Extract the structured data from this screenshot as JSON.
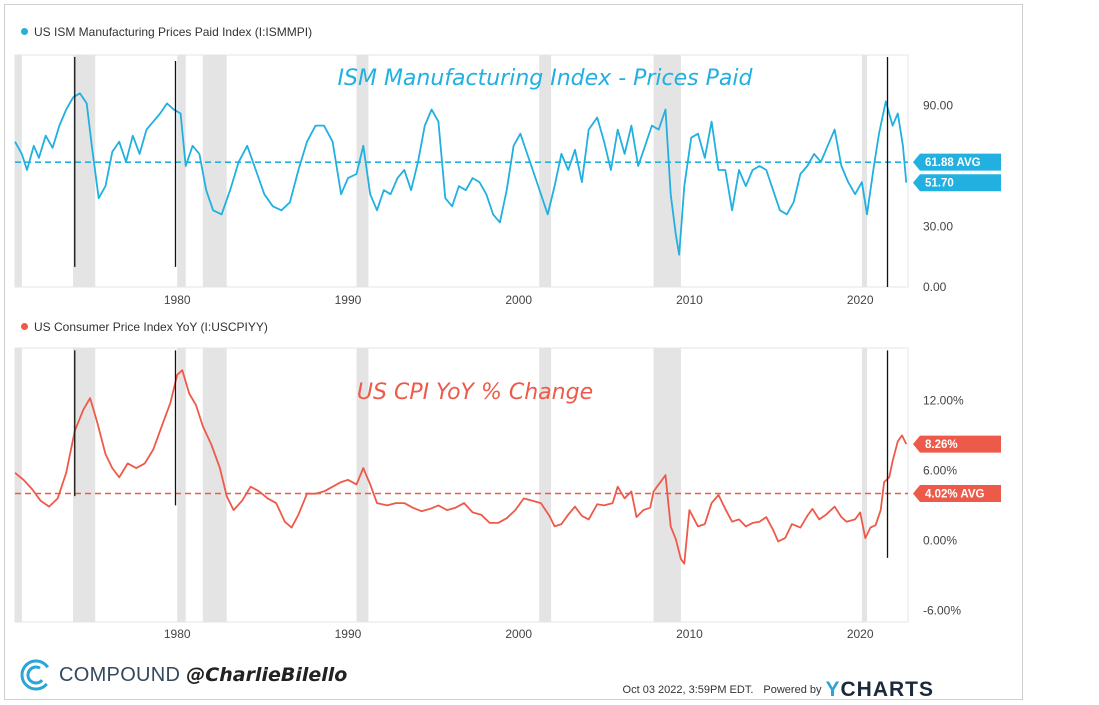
{
  "colors": {
    "ism": "#21b0e0",
    "cpi": "#ee5a4a",
    "recession": "#e4e4e4",
    "axis_text": "#444444"
  },
  "legend": {
    "ism": "US ISM Manufacturing Prices Paid Index (I:ISMMPI)",
    "cpi": "US Consumer Price Index YoY (I:USCPIYY)"
  },
  "footer": {
    "brand": "COMPOUND",
    "handle": "@CharlieBilello",
    "timestamp": "Oct 03 2022, 3:59PM EDT.",
    "powered_by": "Powered by",
    "ycharts_y": "Y",
    "ycharts_rest": "CHARTS"
  },
  "chart_data": [
    {
      "type": "line",
      "title": "ISM Manufacturing Index - Prices Paid",
      "series_name": "US ISM Manufacturing Prices Paid Index (I:ISMMPI)",
      "xlim": [
        1970.5,
        2022.8
      ],
      "ylim": [
        0,
        115
      ],
      "x_ticks": [
        1980,
        1990,
        2000,
        2010,
        2020
      ],
      "y_ticks": [
        0,
        30,
        90
      ],
      "y_tick_labels": [
        "0.00",
        "30.00",
        "90.00"
      ],
      "average": 61.88,
      "average_label": "61.88 AVG",
      "last_value": 51.7,
      "last_label": "51.70",
      "recessions": [
        [
          1970.0,
          1970.9
        ],
        [
          1973.9,
          1975.2
        ],
        [
          1980.0,
          1980.5
        ],
        [
          1981.5,
          1982.9
        ],
        [
          1990.5,
          1991.2
        ],
        [
          2001.2,
          2001.9
        ],
        [
          2007.9,
          2009.5
        ],
        [
          2020.1,
          2020.4
        ]
      ],
      "vlines": [
        [
          1974.0,
          10,
          114
        ],
        [
          1979.9,
          10,
          112
        ],
        [
          2021.6,
          0,
          114
        ]
      ],
      "points": [
        [
          1970.5,
          72
        ],
        [
          1970.9,
          66
        ],
        [
          1971.2,
          58
        ],
        [
          1971.6,
          70
        ],
        [
          1971.9,
          64
        ],
        [
          1972.3,
          75
        ],
        [
          1972.7,
          69
        ],
        [
          1973.1,
          80
        ],
        [
          1973.5,
          88
        ],
        [
          1973.9,
          94
        ],
        [
          1974.3,
          96
        ],
        [
          1974.7,
          91
        ],
        [
          1975.0,
          70
        ],
        [
          1975.4,
          44
        ],
        [
          1975.8,
          50
        ],
        [
          1976.2,
          67
        ],
        [
          1976.6,
          72
        ],
        [
          1977.0,
          62
        ],
        [
          1977.4,
          75
        ],
        [
          1977.8,
          66
        ],
        [
          1978.2,
          78
        ],
        [
          1978.6,
          82
        ],
        [
          1979.0,
          86
        ],
        [
          1979.4,
          91
        ],
        [
          1979.8,
          88
        ],
        [
          1980.2,
          86
        ],
        [
          1980.5,
          60
        ],
        [
          1980.9,
          70
        ],
        [
          1981.3,
          66
        ],
        [
          1981.7,
          48
        ],
        [
          1982.1,
          38
        ],
        [
          1982.6,
          36
        ],
        [
          1983.1,
          48
        ],
        [
          1983.6,
          62
        ],
        [
          1984.1,
          70
        ],
        [
          1984.6,
          58
        ],
        [
          1985.1,
          46
        ],
        [
          1985.6,
          40
        ],
        [
          1986.1,
          38
        ],
        [
          1986.6,
          42
        ],
        [
          1987.1,
          58
        ],
        [
          1987.6,
          72
        ],
        [
          1988.1,
          80
        ],
        [
          1988.6,
          80
        ],
        [
          1989.1,
          72
        ],
        [
          1989.6,
          46
        ],
        [
          1990.0,
          54
        ],
        [
          1990.5,
          56
        ],
        [
          1990.9,
          70
        ],
        [
          1991.3,
          46
        ],
        [
          1991.7,
          38
        ],
        [
          1992.1,
          48
        ],
        [
          1992.5,
          46
        ],
        [
          1992.9,
          54
        ],
        [
          1993.3,
          58
        ],
        [
          1993.7,
          48
        ],
        [
          1994.1,
          62
        ],
        [
          1994.5,
          80
        ],
        [
          1994.9,
          88
        ],
        [
          1995.3,
          82
        ],
        [
          1995.7,
          44
        ],
        [
          1996.1,
          40
        ],
        [
          1996.5,
          50
        ],
        [
          1996.9,
          48
        ],
        [
          1997.3,
          54
        ],
        [
          1997.7,
          52
        ],
        [
          1998.1,
          46
        ],
        [
          1998.5,
          36
        ],
        [
          1998.9,
          32
        ],
        [
          1999.3,
          48
        ],
        [
          1999.7,
          70
        ],
        [
          2000.1,
          76
        ],
        [
          2000.5,
          66
        ],
        [
          2000.9,
          56
        ],
        [
          2001.3,
          46
        ],
        [
          2001.7,
          36
        ],
        [
          2002.1,
          50
        ],
        [
          2002.5,
          66
        ],
        [
          2002.9,
          58
        ],
        [
          2003.3,
          68
        ],
        [
          2003.7,
          52
        ],
        [
          2004.1,
          78
        ],
        [
          2004.6,
          84
        ],
        [
          2005.0,
          72
        ],
        [
          2005.4,
          58
        ],
        [
          2005.8,
          78
        ],
        [
          2006.2,
          66
        ],
        [
          2006.6,
          80
        ],
        [
          2007.0,
          60
        ],
        [
          2007.4,
          70
        ],
        [
          2007.8,
          80
        ],
        [
          2008.2,
          78
        ],
        [
          2008.6,
          88
        ],
        [
          2008.9,
          46
        ],
        [
          2009.2,
          26
        ],
        [
          2009.4,
          16
        ],
        [
          2009.7,
          50
        ],
        [
          2010.1,
          74
        ],
        [
          2010.5,
          76
        ],
        [
          2010.9,
          64
        ],
        [
          2011.3,
          82
        ],
        [
          2011.7,
          58
        ],
        [
          2012.1,
          58
        ],
        [
          2012.5,
          38
        ],
        [
          2012.9,
          58
        ],
        [
          2013.3,
          50
        ],
        [
          2013.7,
          58
        ],
        [
          2014.1,
          60
        ],
        [
          2014.5,
          58
        ],
        [
          2014.9,
          48
        ],
        [
          2015.3,
          38
        ],
        [
          2015.7,
          36
        ],
        [
          2016.1,
          42
        ],
        [
          2016.5,
          56
        ],
        [
          2016.9,
          60
        ],
        [
          2017.3,
          66
        ],
        [
          2017.7,
          62
        ],
        [
          2018.1,
          70
        ],
        [
          2018.5,
          78
        ],
        [
          2018.9,
          60
        ],
        [
          2019.3,
          52
        ],
        [
          2019.7,
          46
        ],
        [
          2020.1,
          52
        ],
        [
          2020.4,
          36
        ],
        [
          2020.8,
          60
        ],
        [
          2021.1,
          76
        ],
        [
          2021.5,
          92
        ],
        [
          2021.9,
          80
        ],
        [
          2022.2,
          86
        ],
        [
          2022.5,
          70
        ],
        [
          2022.7,
          51.7
        ]
      ]
    },
    {
      "type": "line",
      "title": "US CPI YoY % Change",
      "series_name": "US Consumer Price Index YoY (I:USCPIYY)",
      "xlim": [
        1970.5,
        2022.8
      ],
      "ylim": [
        -7,
        16.5
      ],
      "x_ticks": [
        1980,
        1990,
        2000,
        2010,
        2020
      ],
      "y_ticks": [
        -6,
        0,
        6,
        12
      ],
      "y_tick_labels": [
        "-6.00%",
        "0.00%",
        "6.00%",
        "12.00%"
      ],
      "average": 4.02,
      "average_label": "4.02% AVG",
      "last_value": 8.26,
      "last_label": "8.26%",
      "recessions": [
        [
          1970.0,
          1970.9
        ],
        [
          1973.9,
          1975.2
        ],
        [
          1980.0,
          1980.5
        ],
        [
          1981.5,
          1982.9
        ],
        [
          1990.5,
          1991.2
        ],
        [
          2001.2,
          2001.9
        ],
        [
          2007.9,
          2009.5
        ],
        [
          2020.1,
          2020.4
        ]
      ],
      "vlines": [
        [
          1974.0,
          3.8,
          16.3
        ],
        [
          1979.9,
          3,
          16.3
        ],
        [
          2021.6,
          -1.5,
          16.3
        ]
      ],
      "points": [
        [
          1970.5,
          5.8
        ],
        [
          1971.0,
          5.2
        ],
        [
          1971.5,
          4.4
        ],
        [
          1972.0,
          3.4
        ],
        [
          1972.5,
          2.9
        ],
        [
          1973.0,
          3.6
        ],
        [
          1973.5,
          5.8
        ],
        [
          1974.0,
          9.4
        ],
        [
          1974.5,
          11.2
        ],
        [
          1974.9,
          12.2
        ],
        [
          1975.3,
          10.2
        ],
        [
          1975.8,
          7.4
        ],
        [
          1976.2,
          6.2
        ],
        [
          1976.6,
          5.4
        ],
        [
          1977.1,
          6.6
        ],
        [
          1977.6,
          6.2
        ],
        [
          1978.1,
          6.6
        ],
        [
          1978.6,
          7.8
        ],
        [
          1979.1,
          9.8
        ],
        [
          1979.6,
          11.8
        ],
        [
          1980.0,
          14.2
        ],
        [
          1980.3,
          14.6
        ],
        [
          1980.7,
          12.6
        ],
        [
          1981.1,
          11.6
        ],
        [
          1981.5,
          9.8
        ],
        [
          1982.0,
          8.2
        ],
        [
          1982.5,
          6.2
        ],
        [
          1982.9,
          3.8
        ],
        [
          1983.3,
          2.6
        ],
        [
          1983.8,
          3.4
        ],
        [
          1984.3,
          4.6
        ],
        [
          1984.8,
          4.2
        ],
        [
          1985.3,
          3.6
        ],
        [
          1985.8,
          3.2
        ],
        [
          1986.3,
          1.6
        ],
        [
          1986.7,
          1.1
        ],
        [
          1987.1,
          2.2
        ],
        [
          1987.6,
          4.0
        ],
        [
          1988.1,
          4.0
        ],
        [
          1988.6,
          4.2
        ],
        [
          1989.1,
          4.6
        ],
        [
          1989.6,
          5.0
        ],
        [
          1990.0,
          5.2
        ],
        [
          1990.5,
          4.8
        ],
        [
          1990.9,
          6.2
        ],
        [
          1991.3,
          4.8
        ],
        [
          1991.7,
          3.2
        ],
        [
          1992.3,
          3.0
        ],
        [
          1992.8,
          3.2
        ],
        [
          1993.3,
          3.2
        ],
        [
          1993.8,
          2.8
        ],
        [
          1994.3,
          2.5
        ],
        [
          1994.8,
          2.7
        ],
        [
          1995.3,
          3.0
        ],
        [
          1995.8,
          2.6
        ],
        [
          1996.3,
          2.8
        ],
        [
          1996.8,
          3.2
        ],
        [
          1997.3,
          2.4
        ],
        [
          1997.8,
          2.2
        ],
        [
          1998.3,
          1.5
        ],
        [
          1998.8,
          1.5
        ],
        [
          1999.3,
          1.9
        ],
        [
          1999.8,
          2.6
        ],
        [
          2000.3,
          3.6
        ],
        [
          2000.8,
          3.4
        ],
        [
          2001.3,
          3.2
        ],
        [
          2001.8,
          2.1
        ],
        [
          2002.1,
          1.2
        ],
        [
          2002.5,
          1.4
        ],
        [
          2002.9,
          2.2
        ],
        [
          2003.3,
          2.9
        ],
        [
          2003.7,
          2.1
        ],
        [
          2004.1,
          1.8
        ],
        [
          2004.6,
          3.1
        ],
        [
          2005.0,
          3.0
        ],
        [
          2005.5,
          3.2
        ],
        [
          2005.8,
          4.6
        ],
        [
          2006.2,
          3.6
        ],
        [
          2006.6,
          4.2
        ],
        [
          2006.9,
          2.0
        ],
        [
          2007.3,
          2.6
        ],
        [
          2007.7,
          2.8
        ],
        [
          2007.9,
          4.2
        ],
        [
          2008.4,
          5.2
        ],
        [
          2008.6,
          5.6
        ],
        [
          2008.9,
          1.2
        ],
        [
          2009.2,
          0.1
        ],
        [
          2009.5,
          -1.6
        ],
        [
          2009.7,
          -2.0
        ],
        [
          2010.0,
          2.6
        ],
        [
          2010.5,
          1.2
        ],
        [
          2010.9,
          1.4
        ],
        [
          2011.3,
          3.2
        ],
        [
          2011.7,
          3.9
        ],
        [
          2012.1,
          2.7
        ],
        [
          2012.5,
          1.6
        ],
        [
          2012.9,
          1.8
        ],
        [
          2013.3,
          1.2
        ],
        [
          2013.7,
          1.5
        ],
        [
          2014.1,
          1.6
        ],
        [
          2014.5,
          2.0
        ],
        [
          2014.9,
          0.9
        ],
        [
          2015.2,
          -0.1
        ],
        [
          2015.6,
          0.2
        ],
        [
          2016.0,
          1.4
        ],
        [
          2016.5,
          1.1
        ],
        [
          2016.9,
          2.1
        ],
        [
          2017.2,
          2.7
        ],
        [
          2017.6,
          1.8
        ],
        [
          2018.0,
          2.2
        ],
        [
          2018.5,
          2.9
        ],
        [
          2018.9,
          2.0
        ],
        [
          2019.2,
          1.6
        ],
        [
          2019.7,
          1.8
        ],
        [
          2020.0,
          2.4
        ],
        [
          2020.3,
          0.2
        ],
        [
          2020.6,
          1.1
        ],
        [
          2020.9,
          1.3
        ],
        [
          2021.2,
          2.6
        ],
        [
          2021.4,
          5.0
        ],
        [
          2021.7,
          5.4
        ],
        [
          2021.9,
          6.8
        ],
        [
          2022.2,
          8.5
        ],
        [
          2022.45,
          9.0
        ],
        [
          2022.7,
          8.26
        ]
      ]
    }
  ]
}
